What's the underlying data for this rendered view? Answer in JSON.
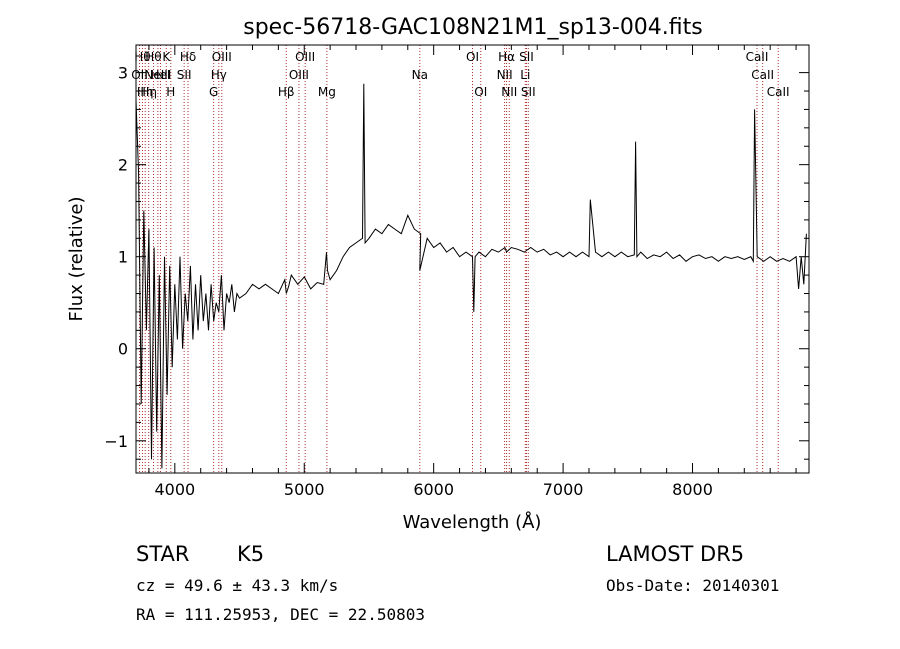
{
  "chart_data": {
    "type": "line",
    "title": "spec-56718-GAC108N21M1_sp13-004.fits",
    "xlabel": "Wavelength (Å)",
    "ylabel": "Flux (relative)",
    "xlim": [
      3700,
      8900
    ],
    "ylim": [
      -1.35,
      3.3
    ],
    "xticks": [
      4000,
      5000,
      6000,
      7000,
      8000
    ],
    "xtick_labels": [
      "4000",
      "5000",
      "6000",
      "7000",
      "8000"
    ],
    "yticks": [
      -1,
      0,
      1,
      2,
      3
    ],
    "ytick_labels": [
      "−1",
      "0",
      "1",
      "2",
      "3"
    ],
    "grid": false,
    "line_colors": {
      "spectrum": "#000000",
      "markers": "#b03030"
    },
    "series": [
      {
        "x": [
          3700,
          3720,
          3740,
          3760,
          3780,
          3800,
          3820,
          3840,
          3860,
          3880,
          3900,
          3920,
          3940,
          3960,
          3980,
          4000,
          4020,
          4040,
          4060,
          4080,
          4100,
          4120,
          4140,
          4160,
          4180,
          4200,
          4220,
          4240,
          4260,
          4280,
          4300,
          4320,
          4340,
          4360,
          4380,
          4400,
          4420,
          4440,
          4460,
          4480,
          4500,
          4550,
          4600,
          4650,
          4700,
          4750,
          4800,
          4850,
          4861,
          4880,
          4900,
          4950,
          5000,
          5050,
          5100,
          5150,
          5172,
          5180,
          5200,
          5250,
          5300,
          5350,
          5400,
          5450,
          5460,
          5470,
          5500,
          5550,
          5600,
          5650,
          5700,
          5750,
          5800,
          5850,
          5900,
          5893,
          5950,
          6000,
          6050,
          6100,
          6150,
          6200,
          6250,
          6300,
          6310,
          6320,
          6350,
          6400,
          6450,
          6500,
          6550,
          6563,
          6600,
          6650,
          6700,
          6750,
          6800,
          6850,
          6900,
          6950,
          7000,
          7050,
          7100,
          7150,
          7200,
          7210,
          7250,
          7300,
          7350,
          7400,
          7450,
          7500,
          7550,
          7560,
          7570,
          7600,
          7650,
          7700,
          7750,
          7800,
          7850,
          7900,
          7950,
          8000,
          8050,
          8100,
          8150,
          8200,
          8250,
          8300,
          8350,
          8400,
          8450,
          8470,
          8480,
          8500,
          8550,
          8600,
          8650,
          8700,
          8750,
          8800,
          8820,
          8840,
          8860,
          8880
        ],
        "y": [
          2.7,
          1.9,
          -0.6,
          1.5,
          0.2,
          1.3,
          -1.2,
          1.1,
          -0.9,
          0.8,
          -1.3,
          1.0,
          -0.5,
          0.9,
          -0.2,
          0.7,
          0.1,
          1.0,
          0.0,
          0.6,
          0.3,
          0.9,
          0.1,
          0.7,
          0.2,
          0.8,
          0.3,
          0.6,
          0.2,
          0.7,
          0.3,
          0.5,
          0.4,
          0.8,
          0.2,
          0.6,
          0.5,
          0.7,
          0.4,
          0.6,
          0.55,
          0.6,
          0.7,
          0.65,
          0.7,
          0.65,
          0.6,
          0.75,
          0.6,
          0.68,
          0.8,
          0.7,
          0.78,
          0.65,
          0.72,
          0.7,
          1.05,
          0.85,
          0.75,
          0.85,
          1.0,
          1.1,
          1.15,
          1.2,
          2.88,
          1.15,
          1.2,
          1.3,
          1.25,
          1.35,
          1.3,
          1.25,
          1.45,
          1.3,
          1.25,
          0.85,
          1.2,
          1.1,
          1.15,
          1.05,
          1.1,
          1.0,
          1.05,
          1.0,
          0.4,
          1.0,
          1.05,
          1.0,
          1.08,
          1.05,
          1.1,
          1.05,
          1.1,
          1.08,
          1.05,
          1.1,
          1.05,
          1.08,
          1.02,
          1.05,
          1.0,
          1.05,
          1.0,
          1.05,
          1.0,
          1.62,
          1.05,
          1.0,
          1.05,
          1.0,
          1.05,
          1.0,
          1.02,
          2.25,
          1.0,
          1.05,
          0.98,
          1.02,
          1.0,
          1.05,
          0.98,
          1.02,
          0.95,
          1.0,
          1.02,
          0.98,
          1.0,
          0.95,
          1.0,
          0.98,
          1.0,
          0.97,
          1.0,
          0.95,
          2.6,
          1.0,
          0.95,
          1.0,
          0.95,
          0.98,
          0.95,
          1.0,
          0.65,
          1.0,
          0.7,
          1.25
        ]
      }
    ],
    "line_markers": [
      {
        "x": 3727,
        "label": "OII",
        "row": 1
      },
      {
        "x": 3750,
        "label": "Hθ",
        "row": 0
      },
      {
        "x": 3771,
        "label": "Hη",
        "row": 2
      },
      {
        "x": 3798,
        "label": "Hη",
        "row": 2
      },
      {
        "x": 3835,
        "label": "Hθ",
        "row": 0
      },
      {
        "x": 3869,
        "label": "NeIII",
        "row": 1
      },
      {
        "x": 3889,
        "label": "HeI",
        "row": 1
      },
      {
        "x": 3934,
        "label": "K",
        "row": 0
      },
      {
        "x": 3969,
        "label": "H",
        "row": 2
      },
      {
        "x": 4072,
        "label": "SII",
        "row": 1
      },
      {
        "x": 4102,
        "label": "Hδ",
        "row": 0
      },
      {
        "x": 4300,
        "label": "G",
        "row": 2
      },
      {
        "x": 4340,
        "label": "Hγ",
        "row": 1
      },
      {
        "x": 4363,
        "label": "OIII",
        "row": 0
      },
      {
        "x": 4861,
        "label": "Hβ",
        "row": 2
      },
      {
        "x": 4959,
        "label": "OIII",
        "row": 1
      },
      {
        "x": 5007,
        "label": "OIII",
        "row": 0
      },
      {
        "x": 5175,
        "label": "Mg",
        "row": 2
      },
      {
        "x": 5893,
        "label": "Na",
        "row": 1
      },
      {
        "x": 6300,
        "label": "OI",
        "row": 0
      },
      {
        "x": 6364,
        "label": "OI",
        "row": 2
      },
      {
        "x": 6548,
        "label": "NII",
        "row": 1
      },
      {
        "x": 6563,
        "label": "Hα",
        "row": 0
      },
      {
        "x": 6584,
        "label": "NII",
        "row": 2
      },
      {
        "x": 6708,
        "label": "Li",
        "row": 1
      },
      {
        "x": 6717,
        "label": "SII",
        "row": 0
      },
      {
        "x": 6731,
        "label": "SII",
        "row": 2
      },
      {
        "x": 8498,
        "label": "CaII",
        "row": 0
      },
      {
        "x": 8542,
        "label": "CaII",
        "row": 1
      },
      {
        "x": 8662,
        "label": "CaII",
        "row": 2
      }
    ]
  },
  "info": {
    "class": "STAR",
    "subclass": "K5",
    "survey": "LAMOST DR5",
    "redshift": "cz = 49.6 ± 43.3 km/s",
    "obs_date": "Obs-Date: 20140301",
    "coords": "RA = 111.25953, DEC =  22.50803"
  }
}
